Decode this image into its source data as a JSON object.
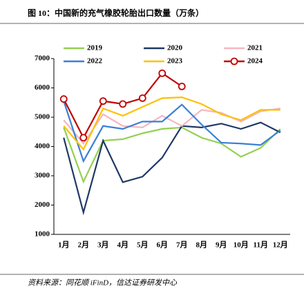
{
  "chart_data": {
    "type": "line",
    "title": "图 10：中国新的充气橡胶轮胎出口数量（万条）",
    "source": "资料来源：同花顺 iFinD，信达证券研发中心",
    "categories": [
      "1月",
      "2月",
      "3月",
      "4月",
      "5月",
      "6月",
      "7月",
      "8月",
      "9月",
      "10月",
      "11月",
      "12月"
    ],
    "series": [
      {
        "name": "2019",
        "color": "#92d050",
        "values": [
          4650,
          2800,
          4200,
          4250,
          4450,
          4600,
          4650,
          4300,
          4100,
          3650,
          3950,
          4600
        ]
      },
      {
        "name": "2020",
        "color": "#1f3864",
        "values": [
          4300,
          1750,
          4200,
          2780,
          2970,
          3620,
          4700,
          4650,
          4780,
          4600,
          4820,
          4480
        ]
      },
      {
        "name": "2021",
        "color": "#f4b6c2",
        "values": [
          4900,
          4100,
          5100,
          4700,
          4650,
          5050,
          4700,
          5250,
          5150,
          4850,
          5200,
          5300
        ]
      },
      {
        "name": "2022",
        "color": "#3a7fd5",
        "values": [
          5550,
          3500,
          4700,
          4600,
          4850,
          4850,
          5430,
          4750,
          4130,
          4100,
          4050,
          4550
        ]
      },
      {
        "name": "2023",
        "color": "#ffc000",
        "values": [
          4700,
          3900,
          5300,
          5050,
          5350,
          5650,
          5680,
          5450,
          5100,
          4900,
          5250,
          5250
        ]
      },
      {
        "name": "2024",
        "color": "#c00000",
        "marker": "circle",
        "values": [
          5620,
          4300,
          5550,
          5450,
          5650,
          6500,
          6050,
          null,
          null,
          null,
          null,
          null
        ]
      }
    ],
    "ylim": [
      1000,
      7000
    ],
    "yticks": [
      1000,
      2000,
      3000,
      4000,
      5000,
      6000,
      7000
    ]
  }
}
